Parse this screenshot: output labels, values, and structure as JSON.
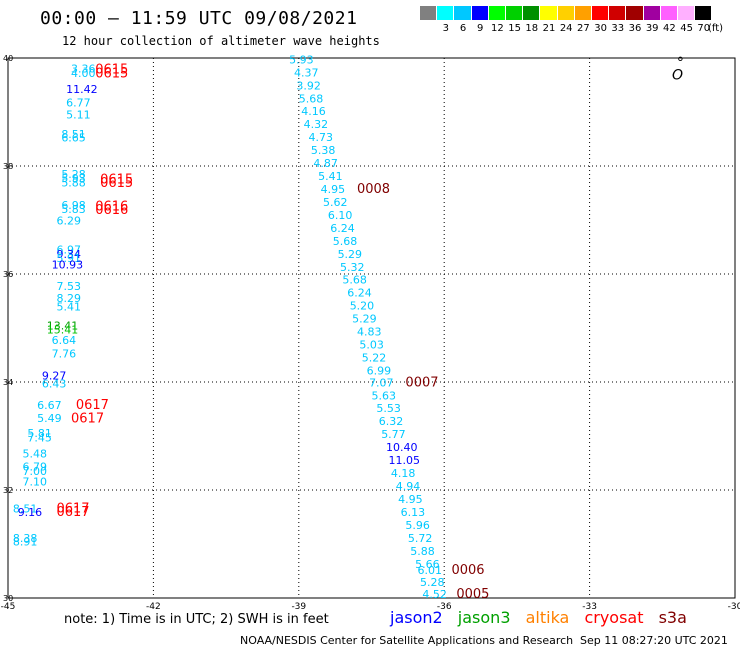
{
  "header": {
    "title": "00:00 – 11:59 UTC 09/08/2021",
    "subtitle": "12 hour collection of altimeter wave heights"
  },
  "colorbar": {
    "swatches": [
      {
        "color": "#808080",
        "label": ""
      },
      {
        "color": "#00ffff",
        "label": "3"
      },
      {
        "color": "#00c8ff",
        "label": "6"
      },
      {
        "color": "#0000ff",
        "label": "9"
      },
      {
        "color": "#00ff00",
        "label": "12"
      },
      {
        "color": "#00d000",
        "label": "15"
      },
      {
        "color": "#009000",
        "label": "18"
      },
      {
        "color": "#ffff00",
        "label": "21"
      },
      {
        "color": "#ffd000",
        "label": "24"
      },
      {
        "color": "#ffa000",
        "label": "27"
      },
      {
        "color": "#ff0000",
        "label": "30"
      },
      {
        "color": "#d00000",
        "label": "33"
      },
      {
        "color": "#a00000",
        "label": "36"
      },
      {
        "color": "#a000a0",
        "label": "39"
      },
      {
        "color": "#ff60ff",
        "label": "42"
      },
      {
        "color": "#ffb0ff",
        "label": "45"
      },
      {
        "color": "#000000",
        "label": "70"
      }
    ],
    "unit": "(ft)"
  },
  "note": "note:  1) Time is in UTC;  2) SWH is in feet",
  "legend": [
    {
      "name": "jason2",
      "color": "#0000ff"
    },
    {
      "name": "jason3",
      "color": "#00a000"
    },
    {
      "name": "altika",
      "color": "#ff8000"
    },
    {
      "name": "cryosat",
      "color": "#ff0000"
    },
    {
      "name": "s3a",
      "color": "#800000"
    }
  ],
  "footer": {
    "center": "NOAA/NESDIS Center for Satellite Applications and Research",
    "right": "Sep 11 08:27:20 UTC 2021"
  },
  "chart_data": {
    "type": "scatter",
    "xlim": [
      -45,
      -30
    ],
    "ylim": [
      30,
      40
    ],
    "xticks": [
      "-45",
      "-42",
      "-39",
      "-36",
      "-33",
      "-30"
    ],
    "yticks": [
      "40",
      "38",
      "36",
      "34",
      "32",
      "30"
    ],
    "grid": true,
    "labels": [
      {
        "x": -43.7,
        "y": 39.73,
        "t": "3.36",
        "c": "#00c8ff"
      },
      {
        "x": -43.7,
        "y": 39.65,
        "t": "4.00",
        "c": "#00c8ff"
      },
      {
        "x": -43.2,
        "y": 39.71,
        "t": "0615",
        "c": "#ff0000"
      },
      {
        "x": -43.2,
        "y": 39.64,
        "t": "0615",
        "c": "#ff0000"
      },
      {
        "x": -43.8,
        "y": 39.35,
        "t": "11.42",
        "c": "#0000ff"
      },
      {
        "x": -43.8,
        "y": 39.1,
        "t": "6.77",
        "c": "#00c8ff"
      },
      {
        "x": -43.8,
        "y": 38.88,
        "t": "5.11",
        "c": "#00c8ff"
      },
      {
        "x": -43.9,
        "y": 38.52,
        "t": "8.51",
        "c": "#00c8ff"
      },
      {
        "x": -43.9,
        "y": 38.45,
        "t": "6.65",
        "c": "#00c8ff"
      },
      {
        "x": -43.9,
        "y": 37.78,
        "t": "5.28",
        "c": "#00c8ff"
      },
      {
        "x": -43.9,
        "y": 37.7,
        "t": "5.93",
        "c": "#00c8ff"
      },
      {
        "x": -43.9,
        "y": 37.62,
        "t": "5.88",
        "c": "#00c8ff"
      },
      {
        "x": -43.1,
        "y": 37.68,
        "t": "0615",
        "c": "#ff0000"
      },
      {
        "x": -43.1,
        "y": 37.61,
        "t": "0615",
        "c": "#ff0000"
      },
      {
        "x": -43.9,
        "y": 37.2,
        "t": "6.98",
        "c": "#00c8ff"
      },
      {
        "x": -43.9,
        "y": 37.13,
        "t": "5.83",
        "c": "#00c8ff"
      },
      {
        "x": -44.0,
        "y": 36.92,
        "t": "6.29",
        "c": "#00c8ff"
      },
      {
        "x": -43.2,
        "y": 37.18,
        "t": "0616",
        "c": "#ff0000"
      },
      {
        "x": -43.2,
        "y": 37.11,
        "t": "0616",
        "c": "#ff0000"
      },
      {
        "x": -44.0,
        "y": 36.38,
        "t": "6.97",
        "c": "#00c8ff"
      },
      {
        "x": -44.0,
        "y": 36.3,
        "t": "9.34",
        "c": "#0000ff"
      },
      {
        "x": -44.0,
        "y": 36.22,
        "t": "5.91",
        "c": "#00c8ff"
      },
      {
        "x": -44.1,
        "y": 36.1,
        "t": "10.93",
        "c": "#0000ff"
      },
      {
        "x": -44.0,
        "y": 35.7,
        "t": "7.53",
        "c": "#00c8ff"
      },
      {
        "x": -44.0,
        "y": 35.48,
        "t": "8.29",
        "c": "#00c8ff"
      },
      {
        "x": -44.0,
        "y": 35.32,
        "t": "5.41",
        "c": "#00c8ff"
      },
      {
        "x": -44.2,
        "y": 34.97,
        "t": "13.41",
        "c": "#00a000"
      },
      {
        "x": -44.2,
        "y": 34.9,
        "t": "15.41",
        "c": "#00c000"
      },
      {
        "x": -44.1,
        "y": 34.7,
        "t": "6.64",
        "c": "#00c8ff"
      },
      {
        "x": -44.1,
        "y": 34.45,
        "t": "7.76",
        "c": "#00c8ff"
      },
      {
        "x": -44.3,
        "y": 34.05,
        "t": "9.27",
        "c": "#0000ff"
      },
      {
        "x": -44.3,
        "y": 33.9,
        "t": "6.43",
        "c": "#00c8ff"
      },
      {
        "x": -44.4,
        "y": 33.5,
        "t": "6.67",
        "c": "#00c8ff"
      },
      {
        "x": -43.6,
        "y": 33.5,
        "t": "0617",
        "c": "#ff0000"
      },
      {
        "x": -44.4,
        "y": 33.26,
        "t": "5.49",
        "c": "#00c8ff"
      },
      {
        "x": -43.7,
        "y": 33.25,
        "t": "0617",
        "c": "#ff0000"
      },
      {
        "x": -44.6,
        "y": 32.98,
        "t": "5.81",
        "c": "#00c8ff"
      },
      {
        "x": -44.6,
        "y": 32.9,
        "t": "7.45",
        "c": "#00c8ff"
      },
      {
        "x": -44.7,
        "y": 32.6,
        "t": "5.48",
        "c": "#00c8ff"
      },
      {
        "x": -44.7,
        "y": 32.36,
        "t": "6.79",
        "c": "#00c8ff"
      },
      {
        "x": -44.7,
        "y": 32.28,
        "t": "7.00",
        "c": "#00c8ff"
      },
      {
        "x": -44.7,
        "y": 32.08,
        "t": "7.10",
        "c": "#00c8ff"
      },
      {
        "x": -44.9,
        "y": 31.58,
        "t": "8.51",
        "c": "#00c8ff"
      },
      {
        "x": -44.8,
        "y": 31.52,
        "t": "9.16",
        "c": "#0000ff"
      },
      {
        "x": -44.0,
        "y": 31.58,
        "t": "0617",
        "c": "#ff0000"
      },
      {
        "x": -44.0,
        "y": 31.52,
        "t": "0617",
        "c": "#ff0000"
      },
      {
        "x": -44.9,
        "y": 31.04,
        "t": "8.38",
        "c": "#00c8ff"
      },
      {
        "x": -44.9,
        "y": 30.97,
        "t": "8.91",
        "c": "#00c8ff"
      },
      {
        "x": -39.2,
        "y": 39.9,
        "t": "5.93",
        "c": "#00c8ff"
      },
      {
        "x": -39.1,
        "y": 39.66,
        "t": "4.37",
        "c": "#00c8ff"
      },
      {
        "x": -39.05,
        "y": 39.42,
        "t": "3.92",
        "c": "#00c8ff"
      },
      {
        "x": -39.0,
        "y": 39.18,
        "t": "5.68",
        "c": "#00c8ff"
      },
      {
        "x": -38.95,
        "y": 38.94,
        "t": "4.16",
        "c": "#00c8ff"
      },
      {
        "x": -38.9,
        "y": 38.7,
        "t": "4.32",
        "c": "#00c8ff"
      },
      {
        "x": -38.8,
        "y": 38.46,
        "t": "4.73",
        "c": "#00c8ff"
      },
      {
        "x": -38.75,
        "y": 38.22,
        "t": "5.38",
        "c": "#00c8ff"
      },
      {
        "x": -38.7,
        "y": 37.98,
        "t": "4.87",
        "c": "#00c8ff"
      },
      {
        "x": -38.6,
        "y": 37.74,
        "t": "5.41",
        "c": "#00c8ff"
      },
      {
        "x": -38.55,
        "y": 37.5,
        "t": "4.95",
        "c": "#00c8ff"
      },
      {
        "x": -37.8,
        "y": 37.5,
        "t": "0008",
        "c": "#800000"
      },
      {
        "x": -38.5,
        "y": 37.26,
        "t": "5.62",
        "c": "#00c8ff"
      },
      {
        "x": -38.4,
        "y": 37.02,
        "t": "6.10",
        "c": "#00c8ff"
      },
      {
        "x": -38.35,
        "y": 36.78,
        "t": "6.24",
        "c": "#00c8ff"
      },
      {
        "x": -38.3,
        "y": 36.54,
        "t": "5.68",
        "c": "#00c8ff"
      },
      {
        "x": -38.2,
        "y": 36.3,
        "t": "5.29",
        "c": "#00c8ff"
      },
      {
        "x": -38.15,
        "y": 36.06,
        "t": "5.32",
        "c": "#00c8ff"
      },
      {
        "x": -38.1,
        "y": 35.82,
        "t": "5.68",
        "c": "#00c8ff"
      },
      {
        "x": -38.0,
        "y": 35.58,
        "t": "6.24",
        "c": "#00c8ff"
      },
      {
        "x": -37.95,
        "y": 35.34,
        "t": "5.20",
        "c": "#00c8ff"
      },
      {
        "x": -37.9,
        "y": 35.1,
        "t": "5.29",
        "c": "#00c8ff"
      },
      {
        "x": -37.8,
        "y": 34.86,
        "t": "4.83",
        "c": "#00c8ff"
      },
      {
        "x": -37.75,
        "y": 34.62,
        "t": "5.03",
        "c": "#00c8ff"
      },
      {
        "x": -37.7,
        "y": 34.38,
        "t": "5.22",
        "c": "#00c8ff"
      },
      {
        "x": -37.6,
        "y": 34.14,
        "t": "6.99",
        "c": "#00c8ff"
      },
      {
        "x": -37.55,
        "y": 33.92,
        "t": "7.07",
        "c": "#00c8ff"
      },
      {
        "x": -36.8,
        "y": 33.92,
        "t": "0007",
        "c": "#800000"
      },
      {
        "x": -37.5,
        "y": 33.68,
        "t": "5.63",
        "c": "#00c8ff"
      },
      {
        "x": -37.4,
        "y": 33.44,
        "t": "5.53",
        "c": "#00c8ff"
      },
      {
        "x": -37.35,
        "y": 33.2,
        "t": "6.32",
        "c": "#00c8ff"
      },
      {
        "x": -37.3,
        "y": 32.96,
        "t": "5.77",
        "c": "#00c8ff"
      },
      {
        "x": -37.2,
        "y": 32.72,
        "t": "10.40",
        "c": "#0000ff"
      },
      {
        "x": -37.15,
        "y": 32.48,
        "t": "11.05",
        "c": "#0000ff"
      },
      {
        "x": -37.1,
        "y": 32.24,
        "t": "4.18",
        "c": "#00c8ff"
      },
      {
        "x": -37.0,
        "y": 32.0,
        "t": "4.94",
        "c": "#00c8ff"
      },
      {
        "x": -36.95,
        "y": 31.76,
        "t": "4.95",
        "c": "#00c8ff"
      },
      {
        "x": -36.9,
        "y": 31.52,
        "t": "6.13",
        "c": "#00c8ff"
      },
      {
        "x": -36.8,
        "y": 31.28,
        "t": "5.96",
        "c": "#00c8ff"
      },
      {
        "x": -36.75,
        "y": 31.04,
        "t": "5.72",
        "c": "#00c8ff"
      },
      {
        "x": -36.7,
        "y": 30.8,
        "t": "5.88",
        "c": "#00c8ff"
      },
      {
        "x": -36.6,
        "y": 30.56,
        "t": "5.66",
        "c": "#00c8ff"
      },
      {
        "x": -36.55,
        "y": 30.44,
        "t": "6.01",
        "c": "#00c8ff"
      },
      {
        "x": -35.85,
        "y": 30.44,
        "t": "0006",
        "c": "#800000"
      },
      {
        "x": -36.5,
        "y": 30.22,
        "t": "5.28",
        "c": "#00c8ff"
      },
      {
        "x": -36.45,
        "y": 30.0,
        "t": "4.52",
        "c": "#00c8ff"
      },
      {
        "x": -35.75,
        "y": 30.0,
        "t": "0005",
        "c": "#800000"
      }
    ],
    "markers": [
      {
        "x": -31.3,
        "y": 39.6,
        "t": "O",
        "c": "#000000"
      },
      {
        "x": -31.2,
        "y": 39.83,
        "t": "°",
        "c": "#000000"
      }
    ]
  }
}
